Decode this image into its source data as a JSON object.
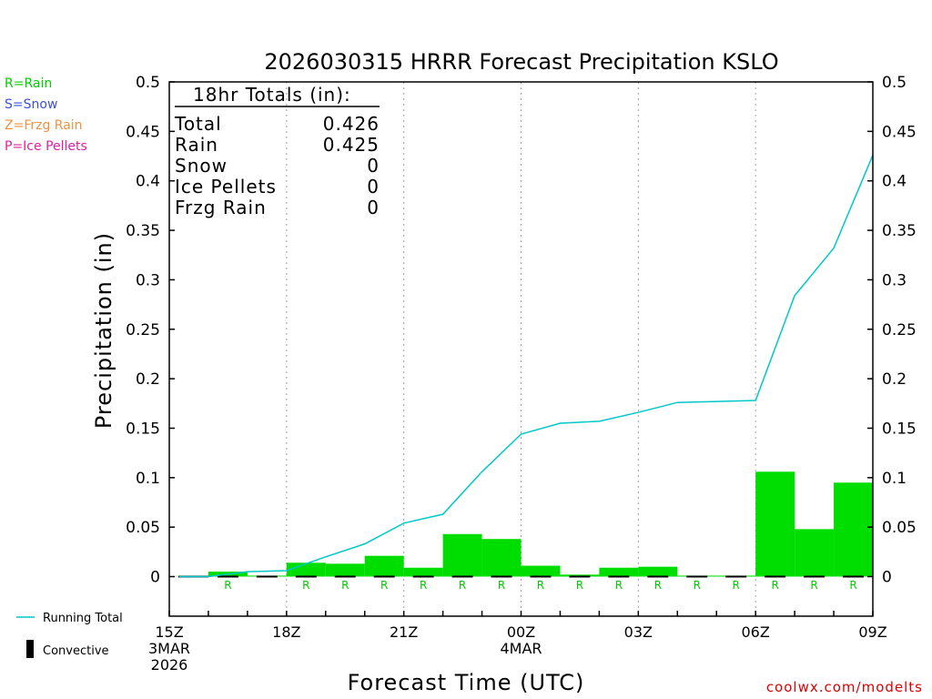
{
  "chart_data": {
    "type": "bar",
    "title": "2026030315 HRRR Forecast Precipitation KSLO",
    "xlabel": "Forecast Time (UTC)",
    "ylabel": "Precipitation (in)",
    "ylim": [
      -0.04,
      0.5
    ],
    "yticks": [
      0,
      0.05,
      0.1,
      0.15,
      0.2,
      0.25,
      0.3,
      0.35,
      0.4,
      0.45,
      0.5
    ],
    "ytick_labels": [
      "0",
      "0.05",
      "0.1",
      "0.15",
      "0.2",
      "0.25",
      "0.3",
      "0.35",
      "0.4",
      "0.45",
      "0.5"
    ],
    "xlim_hours": [
      15,
      33
    ],
    "xtick_labels": [
      {
        "hour": 15,
        "lines": [
          "15Z",
          "3MAR",
          "2026"
        ]
      },
      {
        "hour": 18,
        "lines": [
          "18Z"
        ]
      },
      {
        "hour": 21,
        "lines": [
          "21Z"
        ]
      },
      {
        "hour": 24,
        "lines": [
          "00Z",
          "4MAR"
        ]
      },
      {
        "hour": 27,
        "lines": [
          "03Z"
        ]
      },
      {
        "hour": 30,
        "lines": [
          "06Z"
        ]
      },
      {
        "hour": 33,
        "lines": [
          "09Z"
        ]
      }
    ],
    "grid": "vertical dotted",
    "hourly": [
      {
        "hour": 16,
        "value": 0.0,
        "type": ""
      },
      {
        "hour": 17,
        "value": 0.005,
        "type": "R"
      },
      {
        "hour": 18,
        "value": 0.001,
        "type": ""
      },
      {
        "hour": 19,
        "value": 0.014,
        "type": "R"
      },
      {
        "hour": 20,
        "value": 0.013,
        "type": "R"
      },
      {
        "hour": 21,
        "value": 0.021,
        "type": "R"
      },
      {
        "hour": 22,
        "value": 0.009,
        "type": "R"
      },
      {
        "hour": 23,
        "value": 0.043,
        "type": "R"
      },
      {
        "hour": 24,
        "value": 0.038,
        "type": "R"
      },
      {
        "hour": 25,
        "value": 0.011,
        "type": "R"
      },
      {
        "hour": 26,
        "value": 0.002,
        "type": "R"
      },
      {
        "hour": 27,
        "value": 0.009,
        "type": "R"
      },
      {
        "hour": 28,
        "value": 0.01,
        "type": "R"
      },
      {
        "hour": 29,
        "value": 0.001,
        "type": "R"
      },
      {
        "hour": 30,
        "value": 0.001,
        "type": "R"
      },
      {
        "hour": 31,
        "value": 0.106,
        "type": "R"
      },
      {
        "hour": 32,
        "value": 0.048,
        "type": "R"
      },
      {
        "hour": 33,
        "value": 0.095,
        "type": "R"
      }
    ],
    "running_total": [
      {
        "hour": 15.25,
        "value": 0.0
      },
      {
        "hour": 16,
        "value": 0.0
      },
      {
        "hour": 17,
        "value": 0.005
      },
      {
        "hour": 18,
        "value": 0.006
      },
      {
        "hour": 19,
        "value": 0.02
      },
      {
        "hour": 20,
        "value": 0.033
      },
      {
        "hour": 21,
        "value": 0.054
      },
      {
        "hour": 22,
        "value": 0.063
      },
      {
        "hour": 23,
        "value": 0.106
      },
      {
        "hour": 24,
        "value": 0.144
      },
      {
        "hour": 25,
        "value": 0.155
      },
      {
        "hour": 26,
        "value": 0.157
      },
      {
        "hour": 27,
        "value": 0.166
      },
      {
        "hour": 28,
        "value": 0.176
      },
      {
        "hour": 29,
        "value": 0.177
      },
      {
        "hour": 30,
        "value": 0.178
      },
      {
        "hour": 31,
        "value": 0.284
      },
      {
        "hour": 32,
        "value": 0.332
      },
      {
        "hour": 33,
        "value": 0.426
      }
    ],
    "colors": {
      "rain_bar": "#00dd00",
      "running_total": "#00c8c8",
      "rain_label": "#00cc00",
      "snow_label": "#3a4fe0",
      "frzg_label": "#f09040",
      "ice_label": "#e020a0",
      "convective": "#000000"
    },
    "totals_box": {
      "header": "18hr Totals (in):",
      "rows": [
        {
          "label": "Total",
          "value": "0.426"
        },
        {
          "label": "Rain",
          "value": "0.425"
        },
        {
          "label": "Snow",
          "value": "0"
        },
        {
          "label": "Ice Pellets",
          "value": "0"
        },
        {
          "label": "Frzg Rain",
          "value": "0"
        }
      ]
    },
    "type_legend": [
      {
        "text": "R=Rain",
        "color_key": "rain_label"
      },
      {
        "text": "S=Snow",
        "color_key": "snow_label"
      },
      {
        "text": "Z=Frzg Rain",
        "color_key": "frzg_label"
      },
      {
        "text": "P=Ice Pellets",
        "color_key": "ice_label"
      }
    ],
    "legend": {
      "running_total": "Running Total",
      "convective": "Convective"
    },
    "credit": "coolwx.com/modelts"
  }
}
